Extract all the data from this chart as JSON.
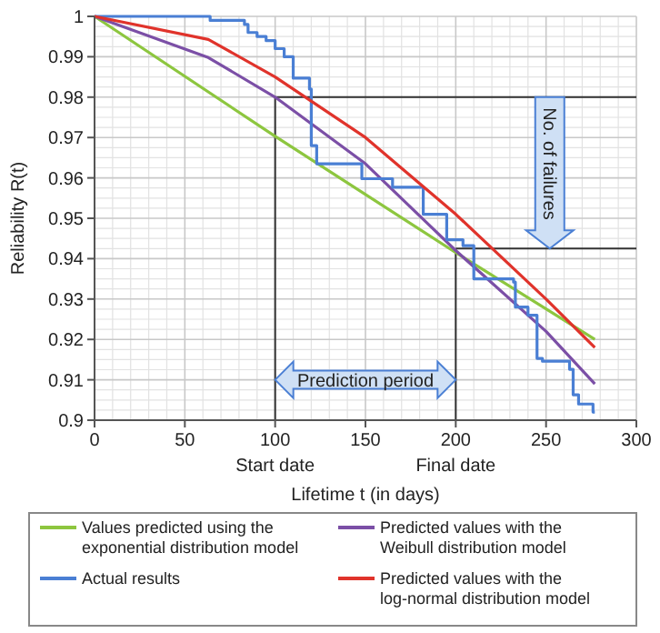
{
  "chart_data": {
    "type": "line",
    "xlabel": "Lifetime t (in days)",
    "ylabel": "Reliability R(t)",
    "xlim": [
      0,
      300
    ],
    "ylim": [
      0.9,
      1
    ],
    "xticks": [
      0,
      50,
      100,
      150,
      200,
      250,
      300
    ],
    "yticks": [
      0.9,
      0.91,
      0.92,
      0.93,
      0.94,
      0.95,
      0.96,
      0.97,
      0.98,
      0.99,
      1
    ],
    "grid": true,
    "legend": "bottom",
    "marker": "none",
    "line_style": "solid",
    "series": [
      {
        "name": "Values predicted using the exponential distribution model",
        "color": "#8dc63f",
        "x": [
          0,
          100,
          200,
          277
        ],
        "values": [
          1,
          0.9703,
          0.9415,
          0.92
        ]
      },
      {
        "name": "Predicted values with the Weibull distribution model",
        "color": "#7b4fa6",
        "x": [
          0,
          63,
          100,
          150,
          200,
          250,
          277
        ],
        "values": [
          1,
          0.9898,
          0.98,
          0.9635,
          0.942,
          0.922,
          0.909
        ]
      },
      {
        "name": "Actual results",
        "color": "#4a7fd4",
        "type": "step",
        "x": [
          0,
          63,
          64,
          83,
          85,
          90,
          95,
          100,
          105,
          110,
          119,
          120,
          123,
          125,
          135,
          148,
          165,
          182,
          195,
          204,
          210,
          215,
          232,
          233,
          240,
          244,
          245,
          248,
          263,
          265,
          268,
          276,
          277
        ],
        "values": [
          1,
          1,
          0.999,
          0.998,
          0.996,
          0.995,
          0.994,
          0.992,
          0.99,
          0.9847,
          0.982,
          0.968,
          0.9635,
          0.9635,
          0.9635,
          0.9598,
          0.9577,
          0.951,
          0.9447,
          0.9432,
          0.935,
          0.935,
          0.9342,
          0.928,
          0.926,
          0.926,
          0.9153,
          0.9146,
          0.9126,
          0.9063,
          0.904,
          0.902,
          0.902
        ]
      },
      {
        "name": "Predicted values with the log-normal distribution model",
        "color": "#e0332b",
        "x": [
          0,
          63,
          100,
          150,
          200,
          250,
          277
        ],
        "values": [
          1,
          0.9943,
          0.985,
          0.97,
          0.951,
          0.93,
          0.918
        ]
      }
    ],
    "ref_lines": [
      {
        "axis": "x",
        "value": 100,
        "label": "Start date",
        "color": "#333333"
      },
      {
        "axis": "x",
        "value": 200,
        "label": "Final date",
        "color": "#333333"
      },
      {
        "axis": "y",
        "value": 0.98,
        "color": "#333333"
      },
      {
        "axis": "y",
        "value": 0.9425,
        "color": "#333333"
      }
    ],
    "annotations": [
      "Prediction period",
      "No. of failures"
    ]
  }
}
